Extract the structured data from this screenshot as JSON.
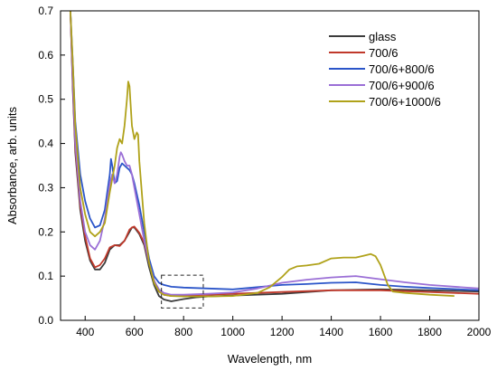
{
  "chart_data": {
    "type": "line",
    "title": "",
    "xlabel": "Wavelength, nm",
    "ylabel": "Absorbance, arb. units",
    "xlim": [
      300,
      2000
    ],
    "ylim": [
      0.0,
      0.7
    ],
    "xticks": [
      400,
      600,
      800,
      1000,
      1200,
      1400,
      1600,
      1800,
      2000
    ],
    "yticks": [
      0.0,
      0.1,
      0.2,
      0.3,
      0.4,
      0.5,
      0.6,
      0.7
    ],
    "xtick_labels": [
      "400",
      "600",
      "800",
      "1000",
      "1200",
      "1400",
      "1600",
      "1800",
      "2000"
    ],
    "ytick_labels": [
      "0.0",
      "0.1",
      "0.2",
      "0.3",
      "0.4",
      "0.5",
      "0.6",
      "0.7"
    ],
    "grid": false,
    "legend_position": "top-right",
    "annotations": [
      {
        "type": "dashed-rectangle",
        "x": [
          710,
          880
        ],
        "y": [
          0.028,
          0.102
        ]
      }
    ],
    "series": [
      {
        "name": "glass",
        "color": "#3c3c3c",
        "points": [
          [
            340,
            0.7
          ],
          [
            350,
            0.52
          ],
          [
            360,
            0.38
          ],
          [
            380,
            0.25
          ],
          [
            400,
            0.18
          ],
          [
            420,
            0.135
          ],
          [
            440,
            0.115
          ],
          [
            460,
            0.115
          ],
          [
            480,
            0.13
          ],
          [
            500,
            0.16
          ],
          [
            520,
            0.17
          ],
          [
            540,
            0.17
          ],
          [
            560,
            0.18
          ],
          [
            580,
            0.2
          ],
          [
            590,
            0.21
          ],
          [
            600,
            0.21
          ],
          [
            620,
            0.195
          ],
          [
            640,
            0.17
          ],
          [
            660,
            0.12
          ],
          [
            680,
            0.08
          ],
          [
            700,
            0.055
          ],
          [
            720,
            0.047
          ],
          [
            750,
            0.043
          ],
          [
            800,
            0.048
          ],
          [
            850,
            0.052
          ],
          [
            900,
            0.054
          ],
          [
            1000,
            0.056
          ],
          [
            1200,
            0.06
          ],
          [
            1400,
            0.068
          ],
          [
            1600,
            0.07
          ],
          [
            1800,
            0.068
          ],
          [
            2000,
            0.065
          ]
        ]
      },
      {
        "name": "700/6",
        "color": "#c0392b",
        "points": [
          [
            340,
            0.7
          ],
          [
            350,
            0.53
          ],
          [
            360,
            0.39
          ],
          [
            380,
            0.26
          ],
          [
            400,
            0.19
          ],
          [
            420,
            0.14
          ],
          [
            440,
            0.12
          ],
          [
            460,
            0.125
          ],
          [
            480,
            0.14
          ],
          [
            500,
            0.165
          ],
          [
            520,
            0.17
          ],
          [
            540,
            0.168
          ],
          [
            560,
            0.18
          ],
          [
            580,
            0.205
          ],
          [
            590,
            0.21
          ],
          [
            600,
            0.212
          ],
          [
            620,
            0.198
          ],
          [
            640,
            0.175
          ],
          [
            660,
            0.13
          ],
          [
            680,
            0.09
          ],
          [
            700,
            0.065
          ],
          [
            720,
            0.058
          ],
          [
            750,
            0.055
          ],
          [
            800,
            0.056
          ],
          [
            900,
            0.058
          ],
          [
            1000,
            0.06
          ],
          [
            1200,
            0.064
          ],
          [
            1400,
            0.068
          ],
          [
            1600,
            0.068
          ],
          [
            1700,
            0.066
          ],
          [
            1800,
            0.064
          ],
          [
            2000,
            0.06
          ]
        ]
      },
      {
        "name": "700/6+800/6",
        "color": "#2b55c9",
        "points": [
          [
            340,
            0.7
          ],
          [
            350,
            0.58
          ],
          [
            360,
            0.45
          ],
          [
            380,
            0.33
          ],
          [
            400,
            0.27
          ],
          [
            420,
            0.23
          ],
          [
            440,
            0.21
          ],
          [
            460,
            0.215
          ],
          [
            480,
            0.25
          ],
          [
            490,
            0.29
          ],
          [
            500,
            0.33
          ],
          [
            505,
            0.365
          ],
          [
            510,
            0.35
          ],
          [
            520,
            0.31
          ],
          [
            530,
            0.315
          ],
          [
            540,
            0.345
          ],
          [
            550,
            0.355
          ],
          [
            560,
            0.35
          ],
          [
            570,
            0.345
          ],
          [
            580,
            0.34
          ],
          [
            590,
            0.33
          ],
          [
            600,
            0.31
          ],
          [
            620,
            0.26
          ],
          [
            640,
            0.2
          ],
          [
            660,
            0.14
          ],
          [
            680,
            0.1
          ],
          [
            700,
            0.085
          ],
          [
            720,
            0.08
          ],
          [
            750,
            0.076
          ],
          [
            800,
            0.074
          ],
          [
            900,
            0.072
          ],
          [
            1000,
            0.07
          ],
          [
            1200,
            0.08
          ],
          [
            1300,
            0.082
          ],
          [
            1400,
            0.085
          ],
          [
            1500,
            0.086
          ],
          [
            1600,
            0.08
          ],
          [
            1700,
            0.076
          ],
          [
            1800,
            0.073
          ],
          [
            2000,
            0.068
          ]
        ]
      },
      {
        "name": "700/6+900/6",
        "color": "#9b6fd6",
        "points": [
          [
            340,
            0.7
          ],
          [
            350,
            0.54
          ],
          [
            360,
            0.4
          ],
          [
            380,
            0.27
          ],
          [
            400,
            0.2
          ],
          [
            420,
            0.17
          ],
          [
            440,
            0.16
          ],
          [
            460,
            0.18
          ],
          [
            480,
            0.23
          ],
          [
            500,
            0.31
          ],
          [
            510,
            0.33
          ],
          [
            520,
            0.31
          ],
          [
            530,
            0.33
          ],
          [
            540,
            0.37
          ],
          [
            545,
            0.38
          ],
          [
            550,
            0.375
          ],
          [
            560,
            0.36
          ],
          [
            570,
            0.35
          ],
          [
            580,
            0.35
          ],
          [
            590,
            0.33
          ],
          [
            600,
            0.3
          ],
          [
            620,
            0.24
          ],
          [
            640,
            0.18
          ],
          [
            660,
            0.13
          ],
          [
            680,
            0.09
          ],
          [
            700,
            0.07
          ],
          [
            720,
            0.062
          ],
          [
            750,
            0.058
          ],
          [
            800,
            0.058
          ],
          [
            900,
            0.06
          ],
          [
            1000,
            0.063
          ],
          [
            1100,
            0.072
          ],
          [
            1200,
            0.085
          ],
          [
            1300,
            0.092
          ],
          [
            1400,
            0.097
          ],
          [
            1500,
            0.1
          ],
          [
            1600,
            0.093
          ],
          [
            1700,
            0.086
          ],
          [
            1800,
            0.08
          ],
          [
            2000,
            0.072
          ]
        ]
      },
      {
        "name": "700/6+1000/6",
        "color": "#b0a21a",
        "points": [
          [
            340,
            0.7
          ],
          [
            350,
            0.58
          ],
          [
            360,
            0.44
          ],
          [
            380,
            0.3
          ],
          [
            400,
            0.24
          ],
          [
            420,
            0.2
          ],
          [
            440,
            0.19
          ],
          [
            460,
            0.2
          ],
          [
            480,
            0.22
          ],
          [
            500,
            0.29
          ],
          [
            510,
            0.32
          ],
          [
            520,
            0.35
          ],
          [
            530,
            0.39
          ],
          [
            540,
            0.41
          ],
          [
            550,
            0.4
          ],
          [
            560,
            0.44
          ],
          [
            570,
            0.5
          ],
          [
            575,
            0.54
          ],
          [
            580,
            0.53
          ],
          [
            590,
            0.44
          ],
          [
            600,
            0.41
          ],
          [
            610,
            0.425
          ],
          [
            615,
            0.42
          ],
          [
            620,
            0.36
          ],
          [
            640,
            0.22
          ],
          [
            660,
            0.13
          ],
          [
            680,
            0.085
          ],
          [
            700,
            0.065
          ],
          [
            720,
            0.058
          ],
          [
            750,
            0.055
          ],
          [
            800,
            0.054
          ],
          [
            900,
            0.054
          ],
          [
            1000,
            0.055
          ],
          [
            1100,
            0.062
          ],
          [
            1150,
            0.075
          ],
          [
            1200,
            0.098
          ],
          [
            1230,
            0.115
          ],
          [
            1260,
            0.122
          ],
          [
            1300,
            0.124
          ],
          [
            1350,
            0.128
          ],
          [
            1400,
            0.14
          ],
          [
            1450,
            0.142
          ],
          [
            1500,
            0.142
          ],
          [
            1530,
            0.146
          ],
          [
            1560,
            0.15
          ],
          [
            1580,
            0.145
          ],
          [
            1600,
            0.125
          ],
          [
            1630,
            0.08
          ],
          [
            1650,
            0.065
          ],
          [
            1700,
            0.062
          ],
          [
            1800,
            0.058
          ],
          [
            1900,
            0.055
          ]
        ]
      }
    ]
  }
}
